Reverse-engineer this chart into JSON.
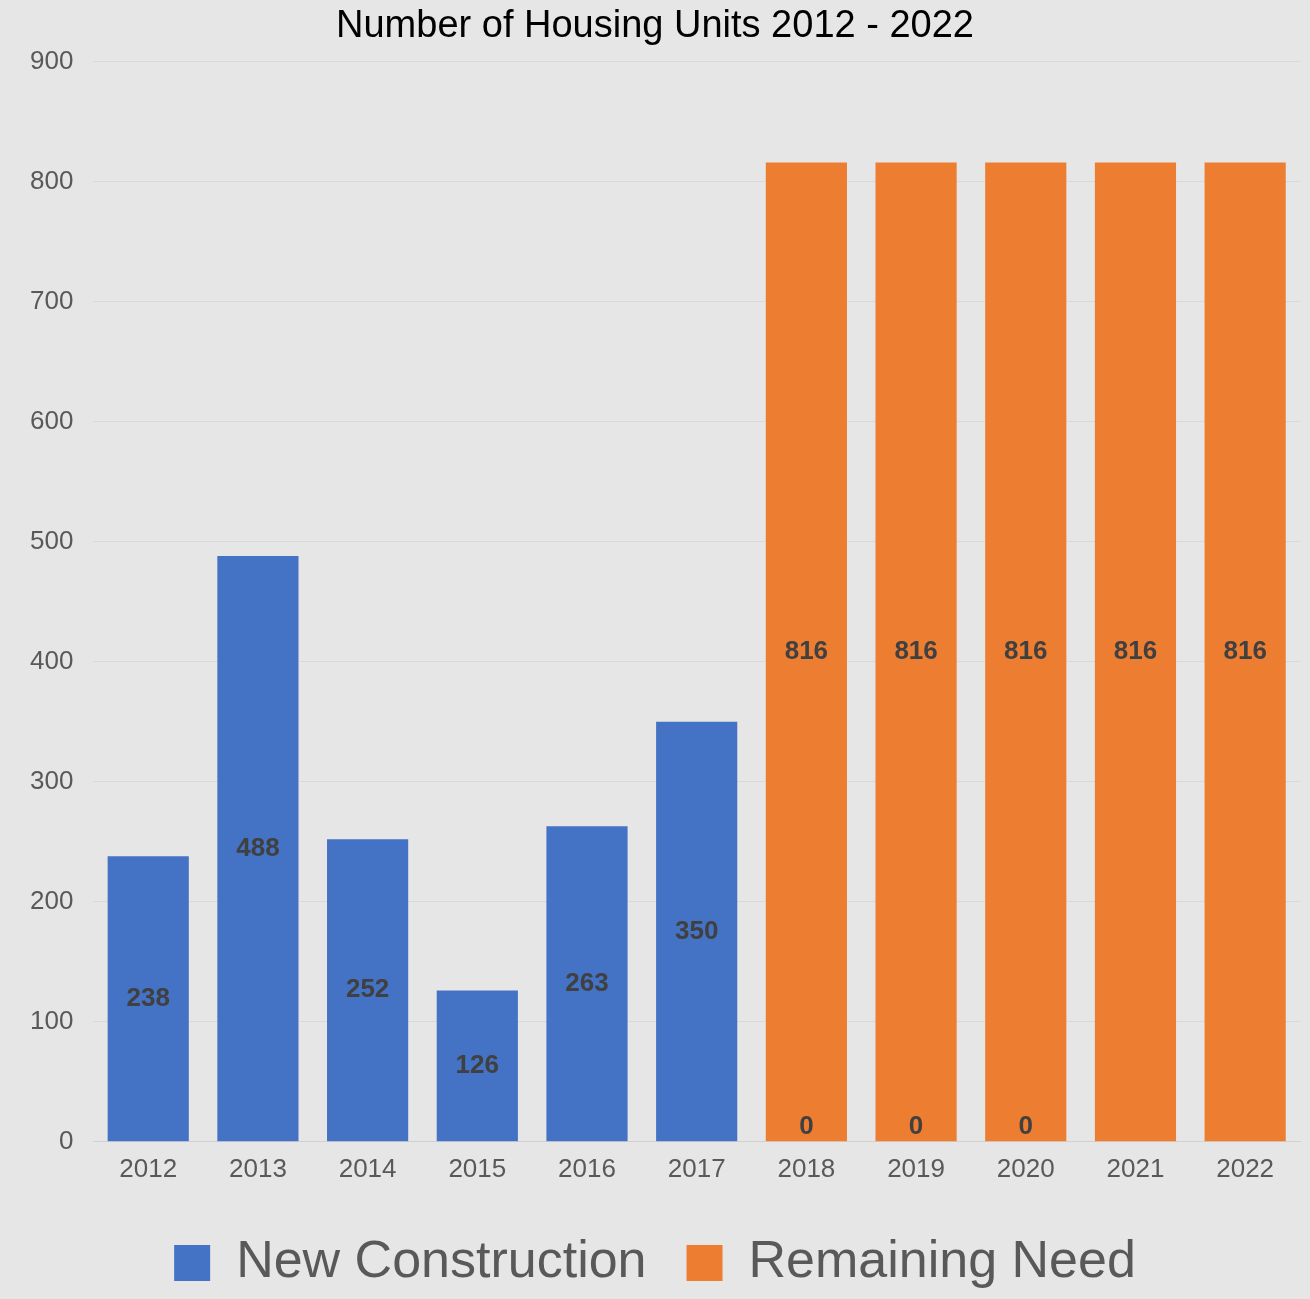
{
  "chart_data": {
    "type": "bar",
    "title": "Number of Housing Units 2012 - 2022",
    "categories": [
      "2012",
      "2013",
      "2014",
      "2015",
      "2016",
      "2017",
      "2018",
      "2019",
      "2020",
      "2021",
      "2022"
    ],
    "series": [
      {
        "name": "New Construction",
        "color": "#4472c4",
        "values": [
          238,
          488,
          252,
          126,
          263,
          350,
          0,
          0,
          0,
          null,
          null
        ]
      },
      {
        "name": "Remaining Need",
        "color": "#ed7d31",
        "values": [
          null,
          null,
          null,
          null,
          null,
          null,
          816,
          816,
          816,
          816,
          816
        ]
      }
    ],
    "ylim": [
      0,
      900
    ],
    "yticks": [
      0,
      100,
      200,
      300,
      400,
      500,
      600,
      700,
      800,
      900
    ],
    "grid": "y",
    "legend": "bottom",
    "data_labels": true
  }
}
